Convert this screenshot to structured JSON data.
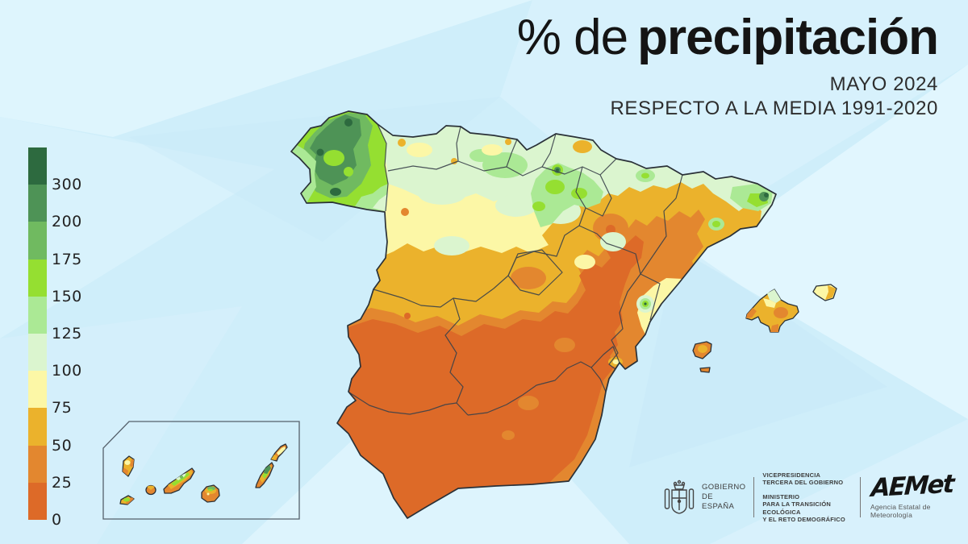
{
  "title": {
    "prefix": "% de",
    "emphasis": "precipitación"
  },
  "subtitle": {
    "line1": "MAYO 2024",
    "line2": "RESPECTO A LA MEDIA 1991-2020"
  },
  "legend": {
    "bands": [
      {
        "color": "#2d6a3f",
        "boundary_label": "300"
      },
      {
        "color": "#4e9356",
        "boundary_label": "200"
      },
      {
        "color": "#70ba60",
        "boundary_label": "175"
      },
      {
        "color": "#95df31",
        "boundary_label": "150"
      },
      {
        "color": "#abe995",
        "boundary_label": "125"
      },
      {
        "color": "#dbf5cf",
        "boundary_label": "100"
      },
      {
        "color": "#fcf7a6",
        "boundary_label": "75"
      },
      {
        "color": "#ebb22c",
        "boundary_label": "50"
      },
      {
        "color": "#e3872f",
        "boundary_label": "25"
      },
      {
        "color": "#dd6a28",
        "boundary_label": "0"
      }
    ]
  },
  "map": {
    "sea_color": "#cfeefa",
    "border_color": "#39414a"
  },
  "footer": {
    "government": {
      "line1": "GOBIERNO",
      "line2": "DE ESPAÑA"
    },
    "ministry": {
      "lines": [
        "VICEPRESIDENCIA",
        "TERCERA DEL GOBIERNO",
        "MINISTERIO",
        "PARA LA TRANSICIÓN ECOLÓGICA",
        "Y EL RETO DEMOGRÁFICO"
      ]
    },
    "aemet": {
      "logo_text": "AEMet",
      "tagline": "Agencia Estatal de Meteorología"
    }
  }
}
